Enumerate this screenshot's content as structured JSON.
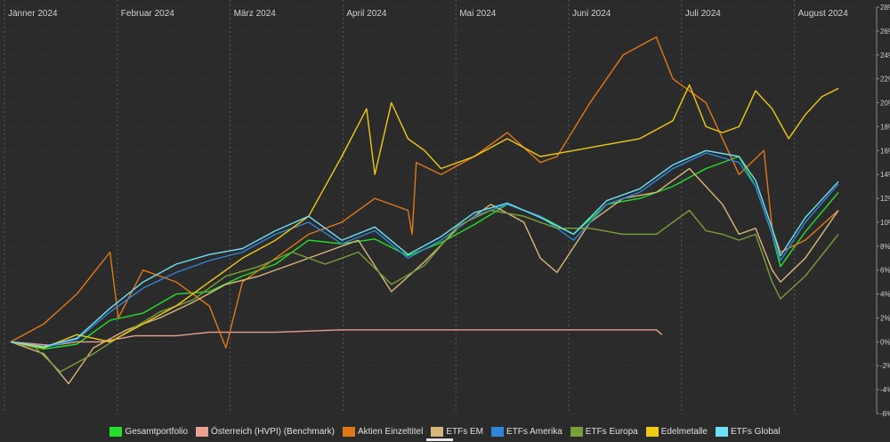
{
  "chart_data": {
    "type": "line",
    "months": [
      "Jänner 2024",
      "Februar 2024",
      "März 2024",
      "April 2024",
      "Mai 2024",
      "Juni 2024",
      "Juli 2024",
      "August 2024"
    ],
    "y_ticks": [
      "28%",
      "26%",
      "24%",
      "22%",
      "20%",
      "18%",
      "16%",
      "14%",
      "12%",
      "10%",
      "8%",
      "6%",
      "4%",
      "2%",
      "0%",
      "-2%",
      "-4%",
      "-6%"
    ],
    "ylim": [
      -6,
      28
    ],
    "grid": true,
    "legend_position": "bottom",
    "series": [
      {
        "name": "Gesamtportfolio",
        "color": "#22e02a",
        "points": [
          [
            0,
            0
          ],
          [
            4,
            -0.6
          ],
          [
            8,
            -0.2
          ],
          [
            12,
            1.8
          ],
          [
            16,
            2.4
          ],
          [
            20,
            4
          ],
          [
            24,
            4.2
          ],
          [
            28,
            5.5
          ],
          [
            32,
            6.5
          ],
          [
            36,
            8.5
          ],
          [
            40,
            8.2
          ],
          [
            44,
            8.6
          ],
          [
            48,
            7.2
          ],
          [
            52,
            8.3
          ],
          [
            56,
            9.8
          ],
          [
            60,
            11.5
          ],
          [
            64,
            10.5
          ],
          [
            68,
            9
          ],
          [
            72,
            11.5
          ],
          [
            76,
            12
          ],
          [
            80,
            13
          ],
          [
            84,
            14.5
          ],
          [
            88,
            15.5
          ],
          [
            90,
            13
          ],
          [
            92,
            9
          ],
          [
            93,
            6.3
          ],
          [
            96,
            9.2
          ],
          [
            100,
            12.5
          ]
        ]
      },
      {
        "name": "Österreich (HVPI) (Benchmark)",
        "color": "#e8a090",
        "points": [
          [
            0,
            0
          ],
          [
            5,
            -0.3
          ],
          [
            8,
            0
          ],
          [
            11,
            0
          ],
          [
            15,
            0.5
          ],
          [
            20,
            0.5
          ],
          [
            24,
            0.8
          ],
          [
            28,
            0.8
          ],
          [
            32,
            0.8
          ],
          [
            40,
            1
          ],
          [
            60,
            1
          ],
          [
            78,
            1
          ],
          [
            78.7,
            0.6
          ]
        ]
      },
      {
        "name": "Aktien Einzeltitel",
        "color": "#e07818",
        "points": [
          [
            0,
            0
          ],
          [
            4,
            1.5
          ],
          [
            8,
            4
          ],
          [
            12,
            7.5
          ],
          [
            13,
            2
          ],
          [
            16,
            6
          ],
          [
            20,
            5
          ],
          [
            24,
            3
          ],
          [
            26,
            -0.5
          ],
          [
            28,
            5
          ],
          [
            32,
            7
          ],
          [
            36,
            9
          ],
          [
            40,
            10
          ],
          [
            44,
            12
          ],
          [
            48,
            11
          ],
          [
            48.5,
            9
          ],
          [
            49,
            15
          ],
          [
            52,
            14
          ],
          [
            56,
            15.5
          ],
          [
            60,
            17.5
          ],
          [
            64,
            15
          ],
          [
            66,
            15.5
          ],
          [
            70,
            20
          ],
          [
            74,
            24
          ],
          [
            78,
            25.5
          ],
          [
            80,
            22
          ],
          [
            84,
            20
          ],
          [
            88,
            14
          ],
          [
            91,
            16
          ],
          [
            92,
            9.5
          ],
          [
            93,
            7.5
          ],
          [
            96,
            8.5
          ],
          [
            100,
            11
          ]
        ]
      },
      {
        "name": "ETFs  EM",
        "color": "#d8b87a",
        "points": [
          [
            0,
            0
          ],
          [
            4,
            -1
          ],
          [
            7,
            -3.5
          ],
          [
            10,
            -0.5
          ],
          [
            14,
            1
          ],
          [
            18,
            2
          ],
          [
            22,
            3.3
          ],
          [
            26,
            4.8
          ],
          [
            30,
            5.5
          ],
          [
            34,
            6.5
          ],
          [
            38,
            7.5
          ],
          [
            42,
            8.5
          ],
          [
            46,
            4.2
          ],
          [
            50,
            6.7
          ],
          [
            54,
            9.5
          ],
          [
            58,
            11.5
          ],
          [
            62,
            10
          ],
          [
            64,
            7
          ],
          [
            66,
            5.8
          ],
          [
            70,
            10
          ],
          [
            74,
            12
          ],
          [
            78,
            12.5
          ],
          [
            82,
            14.5
          ],
          [
            86,
            11.5
          ],
          [
            88,
            9
          ],
          [
            90,
            9.5
          ],
          [
            92,
            6
          ],
          [
            93,
            5
          ],
          [
            96,
            7
          ],
          [
            100,
            11
          ]
        ]
      },
      {
        "name": "ETFs Amerika",
        "color": "#2f86d6",
        "points": [
          [
            0,
            0
          ],
          [
            4,
            -0.5
          ],
          [
            8,
            0.2
          ],
          [
            12,
            2.5
          ],
          [
            16,
            4.5
          ],
          [
            20,
            5.8
          ],
          [
            24,
            6.8
          ],
          [
            28,
            7.5
          ],
          [
            32,
            9
          ],
          [
            36,
            10
          ],
          [
            40,
            8.2
          ],
          [
            44,
            9.3
          ],
          [
            48,
            7
          ],
          [
            52,
            8.5
          ],
          [
            56,
            10.5
          ],
          [
            60,
            11.5
          ],
          [
            64,
            10.5
          ],
          [
            68,
            8.5
          ],
          [
            72,
            11.5
          ],
          [
            76,
            12.5
          ],
          [
            80,
            14.5
          ],
          [
            84,
            15.8
          ],
          [
            88,
            15
          ],
          [
            90,
            13
          ],
          [
            92,
            9
          ],
          [
            93,
            6.8
          ],
          [
            96,
            10
          ],
          [
            100,
            13.2
          ]
        ]
      },
      {
        "name": "ETFs Europa",
        "color": "#7a9e3a",
        "points": [
          [
            0,
            0
          ],
          [
            3,
            -0.5
          ],
          [
            6,
            -2.5
          ],
          [
            10,
            -1
          ],
          [
            14,
            0.8
          ],
          [
            18,
            2.5
          ],
          [
            22,
            3.5
          ],
          [
            26,
            5.5
          ],
          [
            30,
            6.3
          ],
          [
            34,
            7.5
          ],
          [
            38,
            6.5
          ],
          [
            42,
            7.5
          ],
          [
            46,
            4.8
          ],
          [
            50,
            6.4
          ],
          [
            54,
            9.7
          ],
          [
            58,
            11
          ],
          [
            62,
            10.5
          ],
          [
            66,
            9.5
          ],
          [
            70,
            9.5
          ],
          [
            74,
            9
          ],
          [
            78,
            9
          ],
          [
            82,
            11
          ],
          [
            84,
            9.3
          ],
          [
            86,
            9
          ],
          [
            88,
            8.5
          ],
          [
            90,
            9
          ],
          [
            92,
            5
          ],
          [
            93,
            3.6
          ],
          [
            96,
            5.5
          ],
          [
            100,
            9
          ]
        ]
      },
      {
        "name": "Edelmetalle",
        "color": "#f0c818",
        "points": [
          [
            0,
            0
          ],
          [
            4,
            -0.5
          ],
          [
            8,
            0.6
          ],
          [
            12,
            0
          ],
          [
            16,
            1.5
          ],
          [
            20,
            3
          ],
          [
            24,
            5
          ],
          [
            28,
            7
          ],
          [
            32,
            8.5
          ],
          [
            36,
            10.5
          ],
          [
            40,
            15.5
          ],
          [
            43,
            19.5
          ],
          [
            44,
            14
          ],
          [
            46,
            20
          ],
          [
            48,
            17
          ],
          [
            50,
            16
          ],
          [
            52,
            14.5
          ],
          [
            56,
            15.5
          ],
          [
            60,
            17
          ],
          [
            64,
            15.5
          ],
          [
            68,
            16
          ],
          [
            72,
            16.5
          ],
          [
            76,
            17
          ],
          [
            80,
            18.5
          ],
          [
            82,
            21.5
          ],
          [
            84,
            18
          ],
          [
            86,
            17.5
          ],
          [
            88,
            18
          ],
          [
            90,
            21
          ],
          [
            92,
            19.5
          ],
          [
            94,
            17
          ],
          [
            96,
            19
          ],
          [
            98,
            20.5
          ],
          [
            100,
            21.2
          ]
        ]
      },
      {
        "name": "ETFs Global",
        "color": "#6ee0f5",
        "points": [
          [
            0,
            0
          ],
          [
            4,
            -0.4
          ],
          [
            8,
            0.3
          ],
          [
            12,
            2.8
          ],
          [
            16,
            5
          ],
          [
            20,
            6.5
          ],
          [
            24,
            7.3
          ],
          [
            28,
            7.8
          ],
          [
            32,
            9.3
          ],
          [
            36,
            10.5
          ],
          [
            40,
            8.5
          ],
          [
            44,
            9.6
          ],
          [
            48,
            7.3
          ],
          [
            52,
            8.8
          ],
          [
            56,
            10.8
          ],
          [
            60,
            11.6
          ],
          [
            64,
            10.4
          ],
          [
            68,
            9
          ],
          [
            72,
            11.8
          ],
          [
            76,
            12.8
          ],
          [
            80,
            14.8
          ],
          [
            84,
            16
          ],
          [
            88,
            15.5
          ],
          [
            90,
            13.5
          ],
          [
            92,
            9.5
          ],
          [
            93,
            7.2
          ],
          [
            96,
            10.4
          ],
          [
            100,
            13.4
          ]
        ]
      }
    ]
  }
}
